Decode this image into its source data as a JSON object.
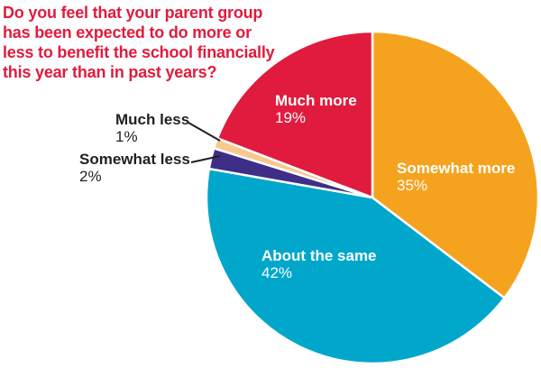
{
  "title": {
    "lines": [
      "Do you feel that your parent group",
      "has been expected to do more or",
      "less to benefit the school financially",
      "this year than in past years?"
    ]
  },
  "colors": {
    "title": "#e01b3d",
    "inside_label": "#ffffff",
    "outside_label": "#231f20",
    "leader_line": "#231f20",
    "slice_separator": "#ffffff",
    "background": "#ffffff"
  },
  "chart_data": {
    "type": "pie",
    "title": "Do you feel that your parent group has been expected to do more or less to benefit the school financially this year than in past years?",
    "start_angle_deg": 0,
    "direction": "clockwise",
    "legend": "none",
    "slices": [
      {
        "label": "Somewhat more",
        "value_pct": 35,
        "display": "35%",
        "color": "#f5a31e",
        "label_position": "inside"
      },
      {
        "label": "About the same",
        "value_pct": 42,
        "display": "42%",
        "color": "#00a7cb",
        "label_position": "inside"
      },
      {
        "label": "Somewhat less",
        "value_pct": 2,
        "display": "2%",
        "color": "#3f2e87",
        "label_position": "outside-left"
      },
      {
        "label": "Much less",
        "value_pct": 1,
        "display": "1%",
        "color": "#f8c98c",
        "label_position": "outside-left"
      },
      {
        "label": "Much more",
        "value_pct": 19,
        "display": "19%",
        "color": "#e01b3d",
        "label_position": "inside"
      }
    ]
  }
}
